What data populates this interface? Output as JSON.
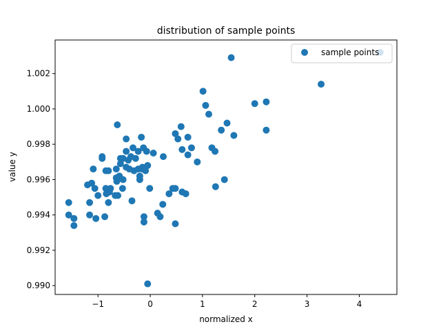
{
  "chart_data": {
    "type": "scatter",
    "title": "distribution of sample points",
    "xlabel": "normalized x",
    "ylabel": "value y",
    "xlim": [
      -1.82,
      4.72
    ],
    "ylim": [
      0.9895,
      1.0039
    ],
    "xticks": [
      {
        "value": -1,
        "label": "−1"
      },
      {
        "value": 0,
        "label": "0"
      },
      {
        "value": 1,
        "label": "1"
      },
      {
        "value": 2,
        "label": "2"
      },
      {
        "value": 3,
        "label": "3"
      },
      {
        "value": 4,
        "label": "4"
      }
    ],
    "yticks": [
      {
        "value": 0.99,
        "label": "0.990"
      },
      {
        "value": 0.992,
        "label": "0.992"
      },
      {
        "value": 0.994,
        "label": "0.994"
      },
      {
        "value": 0.996,
        "label": "0.996"
      },
      {
        "value": 0.998,
        "label": "0.998"
      },
      {
        "value": 1.0,
        "label": "1.000"
      },
      {
        "value": 1.002,
        "label": "1.002"
      }
    ],
    "grid": false,
    "legend": {
      "position": "top-right",
      "entries": [
        "sample points"
      ]
    },
    "series": [
      {
        "name": "sample points",
        "color": "#1f77b4",
        "points": [
          [
            -1.56,
            0.9947
          ],
          [
            -1.56,
            0.994
          ],
          [
            -1.46,
            0.9938
          ],
          [
            -1.46,
            0.9934
          ],
          [
            -1.2,
            0.9957
          ],
          [
            -1.16,
            0.9947
          ],
          [
            -1.16,
            0.994
          ],
          [
            -1.12,
            0.9958
          ],
          [
            -1.09,
            0.9966
          ],
          [
            -1.06,
            0.9955
          ],
          [
            -1.04,
            0.9938
          ],
          [
            -1.0,
            0.9951
          ],
          [
            -0.92,
            0.9973
          ],
          [
            -0.92,
            0.9972
          ],
          [
            -0.87,
            0.9939
          ],
          [
            -0.85,
            0.9965
          ],
          [
            -0.85,
            0.9955
          ],
          [
            -0.84,
            0.9952
          ],
          [
            -0.8,
            0.9965
          ],
          [
            -0.8,
            0.9947
          ],
          [
            -0.78,
            0.9953
          ],
          [
            -0.76,
            0.9955
          ],
          [
            -0.67,
            0.9951
          ],
          [
            -0.65,
            0.9966
          ],
          [
            -0.65,
            0.9961
          ],
          [
            -0.64,
            0.9959
          ],
          [
            -0.63,
            0.9991
          ],
          [
            -0.62,
            0.9951
          ],
          [
            -0.59,
            0.9962
          ],
          [
            -0.57,
            0.9972
          ],
          [
            -0.57,
            0.9969
          ],
          [
            -0.53,
            0.9955
          ],
          [
            -0.52,
            0.9972
          ],
          [
            -0.52,
            0.996
          ],
          [
            -0.46,
            0.9983
          ],
          [
            -0.46,
            0.9976
          ],
          [
            -0.46,
            0.9967
          ],
          [
            -0.42,
            0.9971
          ],
          [
            -0.4,
            0.9966
          ],
          [
            -0.37,
            0.9973
          ],
          [
            -0.35,
            0.9948
          ],
          [
            -0.33,
            0.9978
          ],
          [
            -0.31,
            0.9965
          ],
          [
            -0.28,
            0.9972
          ],
          [
            -0.23,
            0.9976
          ],
          [
            -0.23,
            0.9966
          ],
          [
            -0.2,
            0.996
          ],
          [
            -0.2,
            0.9962
          ],
          [
            -0.17,
            0.9984
          ],
          [
            -0.16,
            0.9966
          ],
          [
            -0.15,
            0.9967
          ],
          [
            -0.13,
            0.9978
          ],
          [
            -0.12,
            0.9939
          ],
          [
            -0.12,
            0.9936
          ],
          [
            -0.09,
            0.9965
          ],
          [
            -0.07,
            0.9976
          ],
          [
            -0.05,
            0.9968
          ],
          [
            -0.05,
            0.9901
          ],
          [
            -0.01,
            0.9955
          ],
          [
            0.06,
            0.9975
          ],
          [
            0.14,
            0.9941
          ],
          [
            0.19,
            0.9939
          ],
          [
            0.24,
            0.9946
          ],
          [
            0.25,
            0.9973
          ],
          [
            0.36,
            0.9952
          ],
          [
            0.43,
            0.9955
          ],
          [
            0.48,
            0.9955
          ],
          [
            0.48,
            0.9986
          ],
          [
            0.48,
            0.9935
          ],
          [
            0.53,
            0.9983
          ],
          [
            0.59,
            0.999
          ],
          [
            0.61,
            0.9977
          ],
          [
            0.61,
            0.9953
          ],
          [
            0.68,
            0.9952
          ],
          [
            0.72,
            0.9984
          ],
          [
            0.72,
            0.9974
          ],
          [
            0.79,
            0.9978
          ],
          [
            0.9,
            0.997
          ],
          [
            1.01,
            1.001
          ],
          [
            1.06,
            1.0002
          ],
          [
            1.12,
            0.9997
          ],
          [
            1.18,
            0.9978
          ],
          [
            1.24,
            0.9976
          ],
          [
            1.25,
            0.9956
          ],
          [
            1.36,
            0.9988
          ],
          [
            1.42,
            0.996
          ],
          [
            1.47,
            0.9992
          ],
          [
            1.55,
            1.0029
          ],
          [
            1.6,
            0.9985
          ],
          [
            2.0,
            1.0003
          ],
          [
            2.22,
            1.0004
          ],
          [
            2.22,
            0.9988
          ],
          [
            3.27,
            1.0014
          ],
          [
            4.4,
            1.0032
          ]
        ]
      }
    ]
  }
}
